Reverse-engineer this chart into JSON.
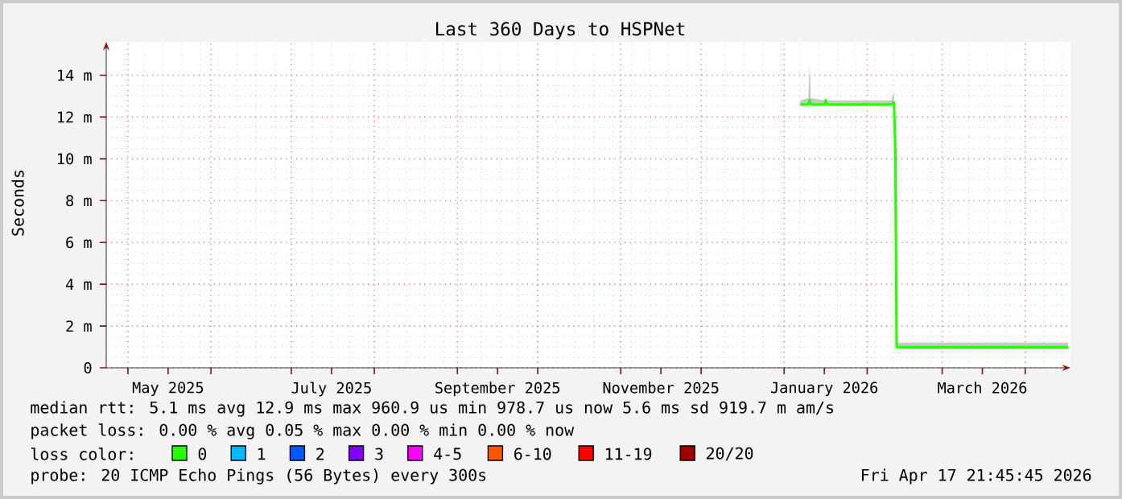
{
  "chart_data": {
    "type": "line",
    "title": "Last 360 Days to HSPNet",
    "ylabel": "Seconds",
    "xlim": [
      "2025-04-22T21:45",
      "2026-04-17T21:45"
    ],
    "xticks": [
      {
        "value": "2025-05-01",
        "label": null
      },
      {
        "value": "2025-06-01",
        "label": null
      },
      {
        "value": "2025-07-01",
        "label": null
      },
      {
        "value": "2025-08-01",
        "label": null
      },
      {
        "value": "2025-09-01",
        "label": null
      },
      {
        "value": "2025-10-01",
        "label": null
      },
      {
        "value": "2025-11-01",
        "label": null
      },
      {
        "value": "2025-12-01",
        "label": null
      },
      {
        "value": "2026-01-01",
        "label": null
      },
      {
        "value": "2026-02-01",
        "label": null
      },
      {
        "value": "2026-03-01",
        "label": null
      },
      {
        "value": "2026-04-01",
        "label": null
      },
      {
        "value": "2025-05-16",
        "label": "May 2025"
      },
      {
        "value": "2025-07-16",
        "label": "July 2025"
      },
      {
        "value": "2025-09-16",
        "label": "September 2025"
      },
      {
        "value": "2025-11-16",
        "label": "November 2025"
      },
      {
        "value": "2026-01-16",
        "label": "January 2026"
      },
      {
        "value": "2026-03-16",
        "label": "March 2026"
      }
    ],
    "ylim": [
      0,
      15.6
    ],
    "yticks": [
      0,
      {
        "value": 2,
        "label": "2 m"
      },
      {
        "value": 4,
        "label": "4 m"
      },
      {
        "value": 6,
        "label": "6 m"
      },
      {
        "value": 8,
        "label": "8 m"
      },
      {
        "value": 10,
        "label": "10 m"
      },
      {
        "value": 12,
        "label": "12 m"
      },
      {
        "value": 14,
        "label": "14 m"
      }
    ],
    "grid": true,
    "legend": "bottom",
    "legend_title": "loss color:",
    "series": [
      {
        "name": "0",
        "color": "#26ff00",
        "x": [
          "2026-01-07",
          "2026-01-10",
          "2026-01-10T12:00",
          "2026-01-11",
          "2026-01-16",
          "2026-01-16T12:00",
          "2026-01-17",
          "2026-02-10",
          "2026-02-11",
          "2026-02-11T12:00",
          "2026-02-12",
          "2026-04-17"
        ],
        "values": [
          12.6,
          12.6,
          12.8,
          12.6,
          12.6,
          12.8,
          12.6,
          12.6,
          12.7,
          10.4,
          0.99,
          0.99
        ],
        "lower": [
          12.6,
          12.6,
          12.8,
          12.6,
          12.6,
          12.8,
          12.6,
          12.6,
          12.7,
          10.4,
          0.99,
          0.99
        ],
        "upper": [
          12.8,
          12.9,
          14.5,
          12.9,
          12.8,
          12.9,
          12.8,
          12.8,
          13.2,
          10.4,
          1.2,
          1.2
        ]
      },
      {
        "name": "1",
        "color": "#00b8ff"
      },
      {
        "name": "2",
        "color": "#0059ff"
      },
      {
        "name": "3",
        "color": "#7e00ff"
      },
      {
        "name": "4-5",
        "color": "#ff00ff"
      },
      {
        "name": "6-10",
        "color": "#ff5500"
      },
      {
        "name": "11-19",
        "color": "#ff0000"
      },
      {
        "name": "20/20",
        "color": "#a10000"
      }
    ],
    "annotations": [
      "median rtt:  5.1 ms avg  12.9 ms max  960.9 us min  978.7 us now  5.6 ms sd  919.7 m am/s",
      "packet loss: 0.00 % avg  0.05 % max  0.00 % min  0.00 % now",
      "probe:       20 ICMP Echo Pings (56 Bytes) every 300s",
      "Fri Apr 17 21:45:45 2026"
    ]
  }
}
